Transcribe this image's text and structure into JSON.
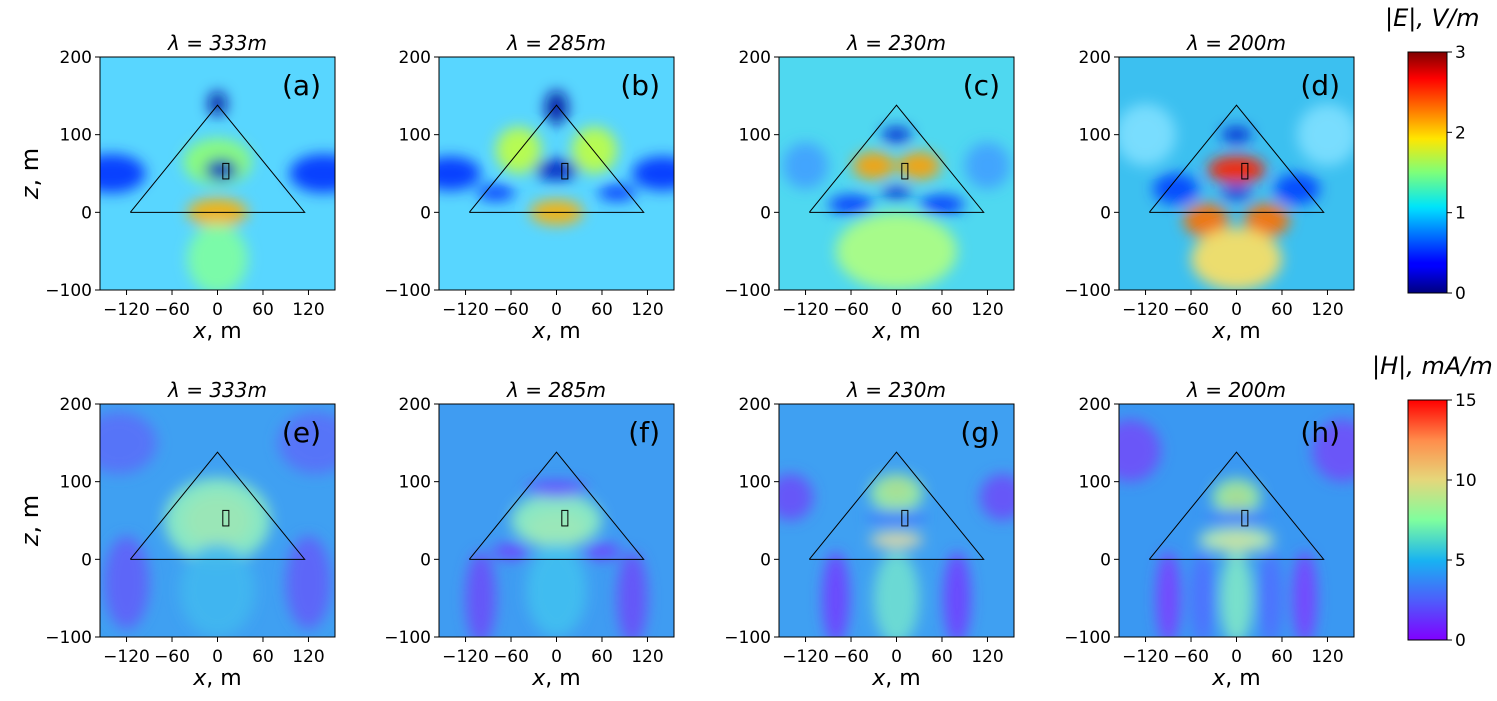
{
  "chart_data": {
    "type": "heatmap",
    "rows": [
      {
        "quantity": "E",
        "colorbar": {
          "label": "|E|, V/m",
          "range": [
            0,
            3
          ],
          "ticks": [
            "0",
            "1",
            "2",
            "3"
          ],
          "colormap": "jet"
        },
        "panels": [
          {
            "panel": "(a)",
            "title": "λ = 333m",
            "wavelength_m": 333
          },
          {
            "panel": "(b)",
            "title": "λ = 285m",
            "wavelength_m": 285
          },
          {
            "panel": "(c)",
            "title": "λ = 230m",
            "wavelength_m": 230
          },
          {
            "panel": "(d)",
            "title": "λ = 200m",
            "wavelength_m": 200
          }
        ]
      },
      {
        "quantity": "H",
        "colorbar": {
          "label": "|H|, mA/m",
          "range": [
            0,
            15
          ],
          "ticks": [
            "0",
            "5",
            "10",
            "15"
          ],
          "colormap": "rainbow"
        },
        "panels": [
          {
            "panel": "(e)",
            "title": "λ = 333m",
            "wavelength_m": 333
          },
          {
            "panel": "(f)",
            "title": "λ = 285m",
            "wavelength_m": 285
          },
          {
            "panel": "(g)",
            "title": "λ = 230m",
            "wavelength_m": 230
          },
          {
            "panel": "(h)",
            "title": "λ = 200m",
            "wavelength_m": 200
          }
        ]
      }
    ],
    "xlabel": "x, m",
    "ylabel": "z, m",
    "xlim": [
      -155,
      155
    ],
    "ylim": [
      -100,
      200
    ],
    "xticks": [
      -120,
      -60,
      0,
      60,
      120
    ],
    "yticks": [
      -100,
      0,
      100,
      200
    ],
    "pyramid_outline": {
      "x": [
        -115,
        0,
        115,
        -115
      ],
      "z": [
        0,
        138,
        0,
        0
      ]
    },
    "feed_marker": {
      "x": [
        7,
        15
      ],
      "z": [
        43,
        63
      ]
    }
  }
}
